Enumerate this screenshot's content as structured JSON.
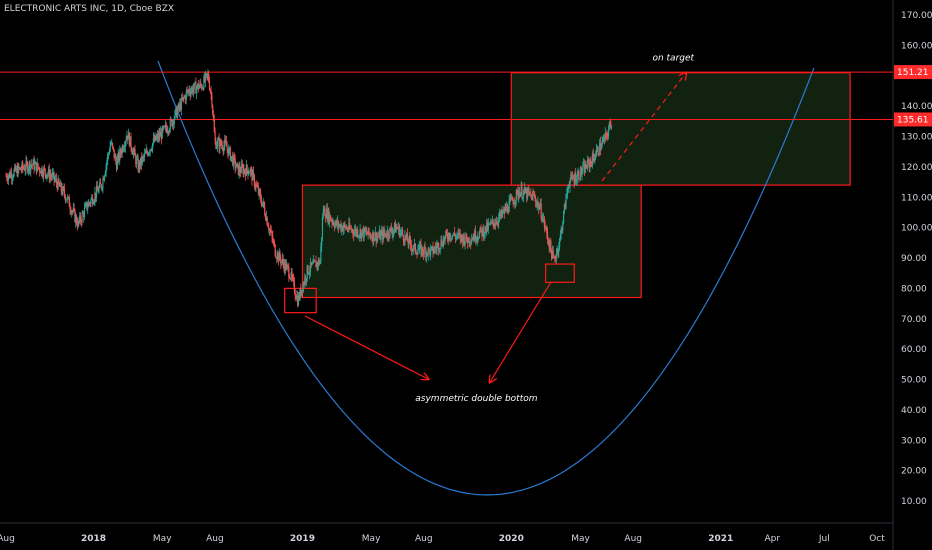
{
  "header": {
    "symbol_title": "ELECTRONIC ARTS INC, 1D, Cboe BZX"
  },
  "colors": {
    "background": "#000000",
    "up_candle": "#26a69a",
    "down_candle": "#ef5350",
    "annotation_red": "#ff1a1a",
    "zone_fill": "#112211",
    "parabola": "#2a7bd1",
    "price_tag": "#ff2b2b"
  },
  "chart_data": {
    "type": "candlestick",
    "title": "ELECTRONIC ARTS INC, 1D, Cboe BZX",
    "y_axis": {
      "ticks": [
        "170.00",
        "160.00",
        "150.00",
        "140.00",
        "130.00",
        "120.00",
        "110.00",
        "100.00",
        "90.00",
        "80.00",
        "70.00",
        "60.00",
        "50.00",
        "40.00",
        "30.00",
        "20.00",
        "10.00"
      ],
      "ylim": [
        0,
        176
      ],
      "position": "right"
    },
    "x_axis": {
      "ticks": [
        {
          "label": "Aug",
          "bold": false
        },
        {
          "label": "2018",
          "bold": true
        },
        {
          "label": "May",
          "bold": false
        },
        {
          "label": "Aug",
          "bold": false
        },
        {
          "label": "2019",
          "bold": true
        },
        {
          "label": "May",
          "bold": false
        },
        {
          "label": "Aug",
          "bold": false
        },
        {
          "label": "2020",
          "bold": true
        },
        {
          "label": "May",
          "bold": false
        },
        {
          "label": "Aug",
          "bold": false
        },
        {
          "label": "2021",
          "bold": true
        },
        {
          "label": "Apr",
          "bold": false
        },
        {
          "label": "Jul",
          "bold": false
        },
        {
          "label": "Oct",
          "bold": false
        }
      ]
    },
    "price_path": [
      [
        "2017-08-01",
        117
      ],
      [
        "2017-09-15",
        121
      ],
      [
        "2017-10-20",
        117
      ],
      [
        "2017-11-15",
        110
      ],
      [
        "2017-12-05",
        101
      ],
      [
        "2017-12-20",
        107
      ],
      [
        "2018-01-15",
        114
      ],
      [
        "2018-01-31",
        128
      ],
      [
        "2018-02-10",
        121
      ],
      [
        "2018-03-01",
        131
      ],
      [
        "2018-03-20",
        120
      ],
      [
        "2018-04-15",
        128
      ],
      [
        "2018-05-15",
        134
      ],
      [
        "2018-06-15",
        145
      ],
      [
        "2018-07-10",
        147
      ],
      [
        "2018-07-20",
        150
      ],
      [
        "2018-07-27",
        142
      ],
      [
        "2018-08-01",
        128
      ],
      [
        "2018-08-20",
        127
      ],
      [
        "2018-09-10",
        119
      ],
      [
        "2018-10-01",
        119
      ],
      [
        "2018-10-25",
        107
      ],
      [
        "2018-11-15",
        92
      ],
      [
        "2018-12-10",
        85
      ],
      [
        "2018-12-24",
        76
      ],
      [
        "2019-01-10",
        86
      ],
      [
        "2019-02-01",
        89
      ],
      [
        "2019-02-06",
        106
      ],
      [
        "2019-03-01",
        101
      ],
      [
        "2019-04-01",
        99
      ],
      [
        "2019-05-15",
        97
      ],
      [
        "2019-06-15",
        100
      ],
      [
        "2019-07-15",
        93
      ],
      [
        "2019-08-15",
        92
      ],
      [
        "2019-09-15",
        98
      ],
      [
        "2019-10-15",
        96
      ],
      [
        "2019-11-15",
        99
      ],
      [
        "2019-12-15",
        104
      ],
      [
        "2020-01-15",
        112
      ],
      [
        "2020-02-10",
        110
      ],
      [
        "2020-02-21",
        106
      ],
      [
        "2020-03-15",
        89
      ],
      [
        "2020-03-25",
        95
      ],
      [
        "2020-04-10",
        115
      ],
      [
        "2020-05-01",
        118
      ],
      [
        "2020-05-20",
        122
      ],
      [
        "2020-06-15",
        130
      ],
      [
        "2020-06-25",
        135.61
      ]
    ],
    "horizontal_lines": [
      {
        "value": 151.21,
        "label": "151.21"
      },
      {
        "value": 135.61,
        "label": "135.61"
      }
    ],
    "boxes": [
      {
        "start": "2019-01-01",
        "end": "2020-08-15",
        "top": 114,
        "bottom": 77,
        "filled": true
      },
      {
        "start": "2020-01-01",
        "end": "2021-08-15",
        "top": 151,
        "bottom": 114,
        "filled": true
      },
      {
        "start": "2018-12-01",
        "end": "2019-01-25",
        "top": 80,
        "bottom": 72,
        "filled": false
      },
      {
        "start": "2020-03-01",
        "end": "2020-04-20",
        "top": 88,
        "bottom": 82,
        "filled": false
      }
    ],
    "annotations": [
      {
        "text": "on target",
        "date": "2020-10-10",
        "value": 155
      },
      {
        "text": "asymmetric double bottom",
        "date": "2019-11-01",
        "value": 43
      }
    ]
  }
}
